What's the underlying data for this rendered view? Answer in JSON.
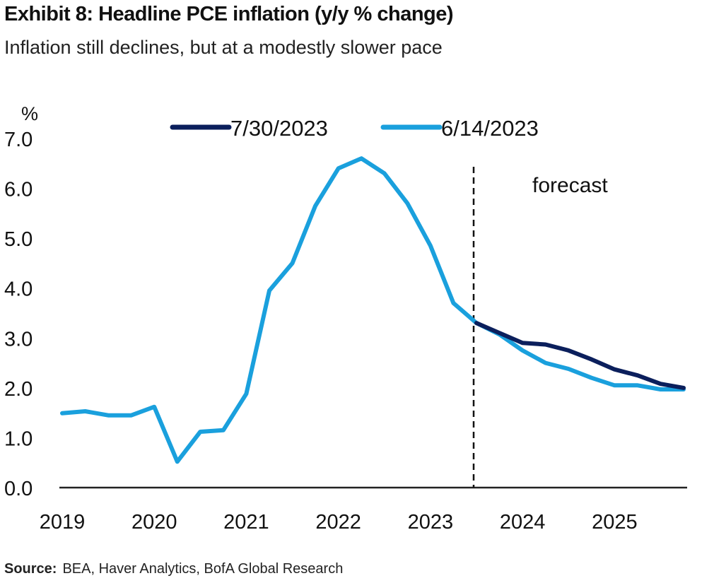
{
  "title": "Exhibit 8: Headline PCE inflation (y/y % change)",
  "subtitle": "Inflation still declines, but at a modestly slower pace",
  "source_label": "Source:",
  "source_text": "BEA, Haver Analytics, BofA Global Research",
  "colors": {
    "series_7_30": "#0b1f5c",
    "series_6_14": "#1aa0dd",
    "axis": "#222222",
    "forecast_line": "#111111"
  },
  "chart_data": {
    "type": "line",
    "title": "Exhibit 8: Headline PCE inflation (y/y % change)",
    "subtitle": "Inflation still declines, but at a modestly slower pace",
    "ylabel": "%",
    "xlabel": "",
    "ylim": [
      0,
      7
    ],
    "yticks": [
      "0.0",
      "1.0",
      "2.0",
      "3.0",
      "4.0",
      "5.0",
      "6.0",
      "7.0"
    ],
    "xticks": [
      "2019",
      "2020",
      "2021",
      "2022",
      "2023",
      "2024",
      "2025"
    ],
    "xlim": [
      2019.0,
      2025.75
    ],
    "grid": false,
    "legend_position": "top-center",
    "annotation": "forecast",
    "forecast_start_x": 2023.5,
    "series": [
      {
        "name": "7/30/2023",
        "points": [
          [
            2023.5,
            3.3
          ],
          [
            2023.75,
            3.1
          ],
          [
            2024.0,
            2.9
          ],
          [
            2024.25,
            2.87
          ],
          [
            2024.5,
            2.75
          ],
          [
            2024.75,
            2.57
          ],
          [
            2025.0,
            2.37
          ],
          [
            2025.25,
            2.25
          ],
          [
            2025.5,
            2.08
          ],
          [
            2025.75,
            2.0
          ]
        ]
      },
      {
        "name": "6/14/2023",
        "points": [
          [
            2019.0,
            1.49
          ],
          [
            2019.25,
            1.53
          ],
          [
            2019.5,
            1.45
          ],
          [
            2019.75,
            1.45
          ],
          [
            2020.0,
            1.62
          ],
          [
            2020.25,
            0.52
          ],
          [
            2020.5,
            1.12
          ],
          [
            2020.75,
            1.15
          ],
          [
            2021.0,
            1.88
          ],
          [
            2021.25,
            3.95
          ],
          [
            2021.5,
            4.5
          ],
          [
            2021.75,
            5.65
          ],
          [
            2022.0,
            6.4
          ],
          [
            2022.25,
            6.6
          ],
          [
            2022.5,
            6.3
          ],
          [
            2022.75,
            5.7
          ],
          [
            2023.0,
            4.85
          ],
          [
            2023.25,
            3.7
          ],
          [
            2023.5,
            3.3
          ],
          [
            2023.75,
            3.07
          ],
          [
            2024.0,
            2.75
          ],
          [
            2024.25,
            2.5
          ],
          [
            2024.5,
            2.38
          ],
          [
            2024.75,
            2.2
          ],
          [
            2025.0,
            2.05
          ],
          [
            2025.25,
            2.05
          ],
          [
            2025.5,
            1.97
          ],
          [
            2025.75,
            1.97
          ]
        ]
      }
    ]
  }
}
